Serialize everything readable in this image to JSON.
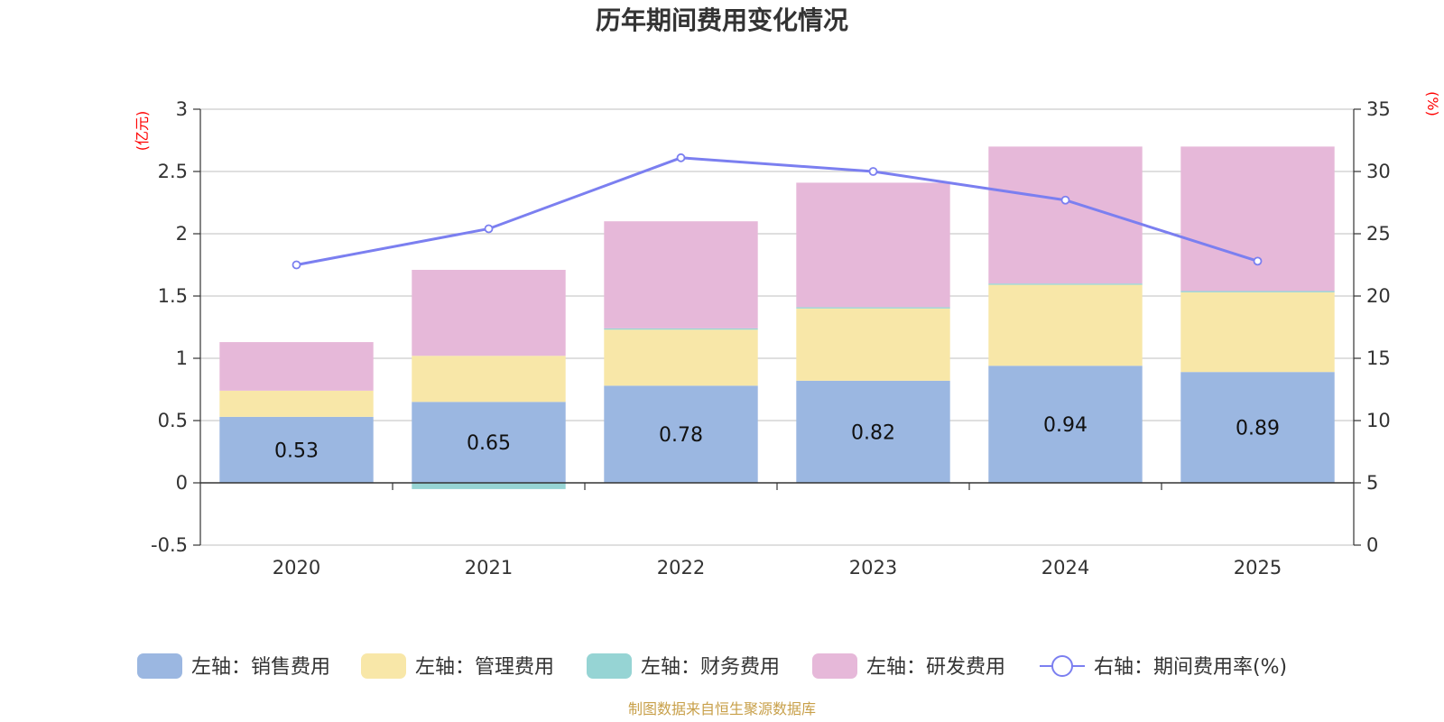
{
  "chart_data": {
    "type": "bar",
    "stacked": true,
    "title": "历年期间费用变化情况",
    "categories": [
      "2020",
      "2021",
      "2022",
      "2023",
      "2024",
      "2025"
    ],
    "left_axis": {
      "unit": "(亿元)",
      "ylim": [
        -0.5,
        3
      ],
      "ticks": [
        -0.5,
        0,
        0.5,
        1,
        1.5,
        2,
        2.5,
        3
      ],
      "tick_labels": [
        "-0.5",
        "0",
        "0.5",
        "1",
        "1.5",
        "2",
        "2.5",
        "3"
      ]
    },
    "right_axis": {
      "unit": "(%)",
      "ylim": [
        0,
        35
      ],
      "ticks": [
        0,
        5,
        10,
        15,
        20,
        25,
        30,
        35
      ],
      "tick_labels": [
        "0",
        "5",
        "10",
        "15",
        "20",
        "25",
        "30",
        "35"
      ]
    },
    "series": [
      {
        "name": "左轴：销售费用",
        "axis": "left",
        "color": "#9bb7e1",
        "values": [
          0.53,
          0.65,
          0.78,
          0.82,
          0.94,
          0.89
        ],
        "value_labels": [
          "0.53",
          "0.65",
          "0.78",
          "0.82",
          "0.94",
          "0.89"
        ]
      },
      {
        "name": "左轴：管理费用",
        "axis": "left",
        "color": "#f8e7a8",
        "values": [
          0.21,
          0.37,
          0.45,
          0.58,
          0.65,
          0.64
        ]
      },
      {
        "name": "左轴：财务费用",
        "axis": "left",
        "color": "#96d4d4",
        "values": [
          0.0,
          -0.05,
          0.01,
          0.01,
          0.01,
          0.01
        ]
      },
      {
        "name": "左轴：研发费用",
        "axis": "left",
        "color": "#e6b8d9",
        "values": [
          0.39,
          0.69,
          0.86,
          1.0,
          1.1,
          1.16
        ]
      }
    ],
    "line": {
      "name": "右轴：期间费用率(%)",
      "axis": "right",
      "color": "#7b7ff0",
      "values": [
        22.5,
        25.4,
        31.1,
        30.0,
        27.7,
        22.8
      ]
    },
    "legend_position": "bottom",
    "source": "制图数据来自恒生聚源数据库"
  }
}
